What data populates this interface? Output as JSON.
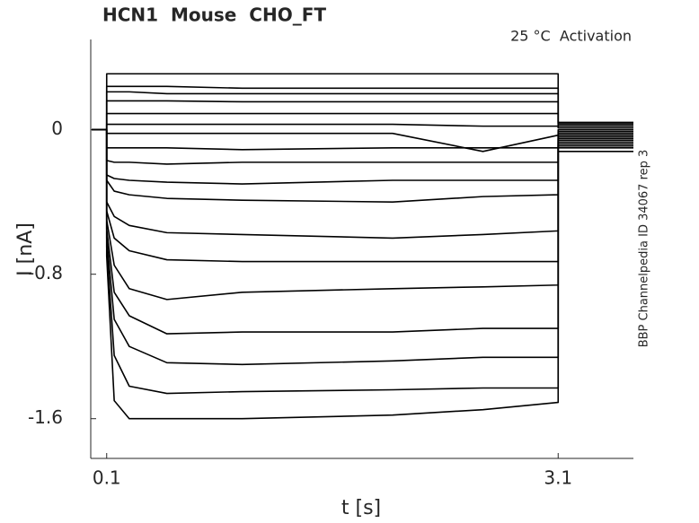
{
  "chart_data": {
    "type": "line",
    "title": "HCN1  Mouse  CHO_FT",
    "annotation": "25 °C  Activation",
    "side_note": "BBP Channelpedia ID 34067 rep 3",
    "xlabel": "t [s]",
    "ylabel": "I [nA]",
    "xlim": [
      0,
      3.6
    ],
    "ylim": [
      -1.82,
      0.5
    ],
    "xticks": [
      0.1,
      3.1
    ],
    "yticks": [
      0,
      -0.8,
      -1.6
    ],
    "grid": false,
    "x": [
      0,
      0.1,
      0.1,
      0.15,
      0.25,
      0.5,
      1.0,
      2.0,
      2.6,
      3.1,
      3.1,
      3.6
    ],
    "series": [
      {
        "color": "#000000",
        "values": [
          0,
          0,
          0.31,
          0.31,
          0.31,
          0.31,
          0.31,
          0.31,
          0.31,
          0.31,
          0.04,
          0.04
        ]
      },
      {
        "color": "#000000",
        "values": [
          0,
          0,
          0.24,
          0.24,
          0.24,
          0.24,
          0.23,
          0.23,
          0.23,
          0.23,
          0.04,
          0.04
        ]
      },
      {
        "color": "#000000",
        "values": [
          0,
          0,
          0.21,
          0.21,
          0.21,
          0.2,
          0.2,
          0.2,
          0.2,
          0.2,
          0.03,
          0.03
        ]
      },
      {
        "color": "#000000",
        "values": [
          0,
          0,
          0.16,
          0.16,
          0.16,
          0.16,
          0.155,
          0.155,
          0.155,
          0.155,
          0.03,
          0.03
        ]
      },
      {
        "color": "#000000",
        "values": [
          0,
          0,
          0.09,
          0.09,
          0.09,
          0.09,
          0.09,
          0.09,
          0.09,
          0.09,
          0.02,
          0.02
        ]
      },
      {
        "color": "#000000",
        "values": [
          0,
          0,
          0.03,
          0.03,
          0.03,
          0.03,
          0.03,
          0.03,
          0.02,
          0.02,
          0.01,
          0.01
        ]
      },
      {
        "color": "#000000",
        "values": [
          0,
          0,
          -0.02,
          -0.02,
          -0.02,
          -0.02,
          -0.02,
          -0.02,
          -0.12,
          -0.03,
          0,
          0
        ]
      },
      {
        "color": "#000000",
        "values": [
          0,
          0,
          -0.1,
          -0.1,
          -0.1,
          -0.1,
          -0.11,
          -0.1,
          -0.1,
          -0.1,
          -0.01,
          -0.01
        ]
      },
      {
        "color": "#000000",
        "values": [
          0,
          0,
          -0.17,
          -0.18,
          -0.18,
          -0.19,
          -0.18,
          -0.18,
          -0.18,
          -0.18,
          -0.02,
          -0.02
        ]
      },
      {
        "color": "#000000",
        "values": [
          0,
          0,
          -0.25,
          -0.27,
          -0.28,
          -0.29,
          -0.3,
          -0.28,
          -0.28,
          -0.28,
          -0.03,
          -0.03
        ]
      },
      {
        "color": "#000000",
        "values": [
          0,
          0,
          -0.28,
          -0.34,
          -0.36,
          -0.38,
          -0.39,
          -0.4,
          -0.37,
          -0.36,
          -0.04,
          -0.04
        ]
      },
      {
        "color": "#000000",
        "values": [
          0,
          0,
          -0.4,
          -0.48,
          -0.53,
          -0.57,
          -0.58,
          -0.6,
          -0.58,
          -0.56,
          -0.05,
          -0.05
        ]
      },
      {
        "color": "#000000",
        "values": [
          0,
          0,
          -0.45,
          -0.6,
          -0.67,
          -0.72,
          -0.73,
          -0.73,
          -0.73,
          -0.73,
          -0.06,
          -0.06
        ]
      },
      {
        "color": "#000000",
        "values": [
          0,
          0,
          -0.5,
          -0.75,
          -0.88,
          -0.94,
          -0.9,
          -0.88,
          -0.87,
          -0.86,
          -0.07,
          -0.07
        ]
      },
      {
        "color": "#000000",
        "values": [
          0,
          0,
          -0.55,
          -0.9,
          -1.03,
          -1.13,
          -1.12,
          -1.12,
          -1.1,
          -1.1,
          -0.08,
          -0.08
        ]
      },
      {
        "color": "#000000",
        "values": [
          0,
          0,
          -0.6,
          -1.05,
          -1.2,
          -1.29,
          -1.3,
          -1.28,
          -1.26,
          -1.26,
          -0.09,
          -0.09
        ]
      },
      {
        "color": "#000000",
        "values": [
          0,
          0,
          -0.65,
          -1.25,
          -1.42,
          -1.46,
          -1.45,
          -1.44,
          -1.43,
          -1.43,
          -0.1,
          -0.1
        ]
      },
      {
        "color": "#000000",
        "values": [
          0,
          0,
          -0.7,
          -1.5,
          -1.6,
          -1.6,
          -1.6,
          -1.58,
          -1.55,
          -1.51,
          -0.12,
          -0.12
        ]
      }
    ]
  }
}
